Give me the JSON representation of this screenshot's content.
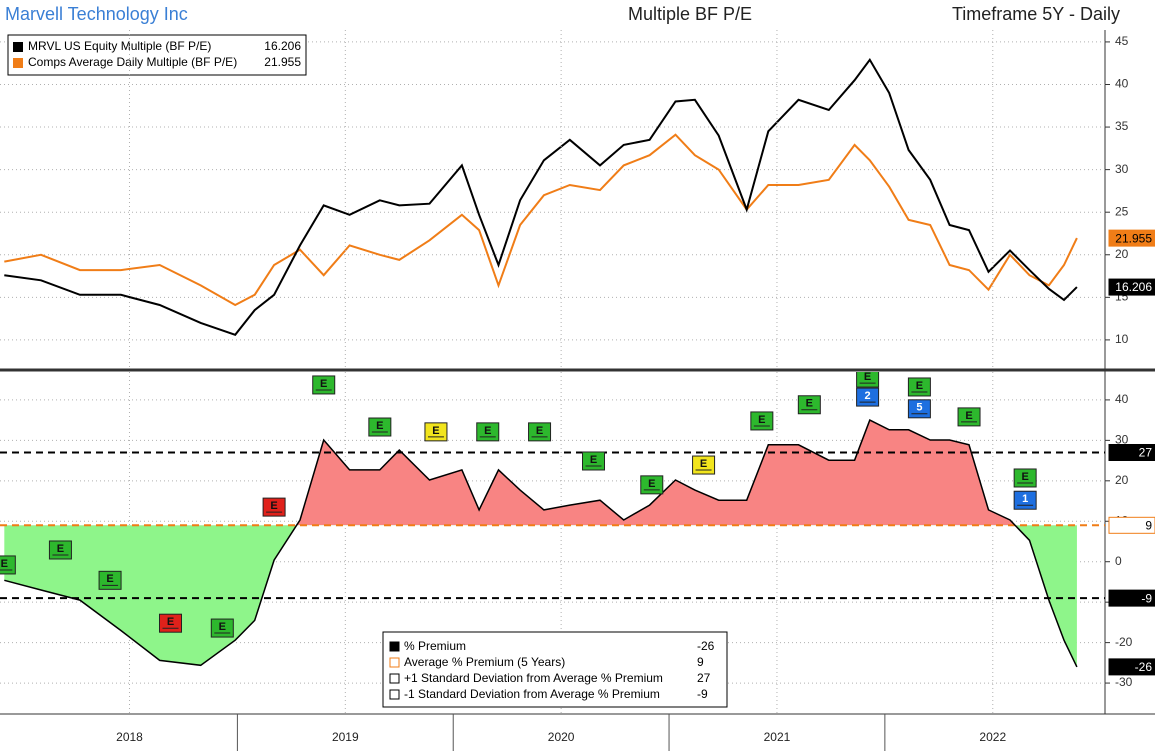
{
  "header": {
    "company": "Marvell Technology Inc",
    "title": "Multiple BF P/E",
    "timeframe": "Timeframe 5Y - Daily"
  },
  "chart_data": [
    {
      "type": "line",
      "x": [
        2017.92,
        2018.09,
        2018.27,
        2018.46,
        2018.64,
        2018.83,
        2018.99,
        2019.08,
        2019.17,
        2019.29,
        2019.4,
        2019.52,
        2019.66,
        2019.75,
        2019.89,
        2020.04,
        2020.12,
        2020.21,
        2020.31,
        2020.42,
        2020.54,
        2020.68,
        2020.79,
        2020.91,
        2021.03,
        2021.12,
        2021.23,
        2021.36,
        2021.46,
        2021.6,
        2021.74,
        2021.86,
        2021.93,
        2022.02,
        2022.11,
        2022.21,
        2022.3,
        2022.39,
        2022.48,
        2022.58,
        2022.67,
        2022.76,
        2022.83,
        2022.89
      ],
      "xlim": [
        2017.9,
        2023.02
      ],
      "ylim": [
        6.7,
        46.4
      ],
      "yticks": [
        10,
        15,
        20,
        25,
        30,
        35,
        40,
        45
      ],
      "grid": true,
      "legend": "upper left",
      "series": [
        {
          "name": "MRVL US Equity Multiple (BF P/E)",
          "color": "#000000",
          "values": [
            17.6,
            17.0,
            15.3,
            15.3,
            14.1,
            12.0,
            10.6,
            13.5,
            15.3,
            21.1,
            25.8,
            24.7,
            26.4,
            25.8,
            26.0,
            30.5,
            24.7,
            18.8,
            26.4,
            31.1,
            33.5,
            30.5,
            32.9,
            33.5,
            38.0,
            38.2,
            34.0,
            25.3,
            34.5,
            38.2,
            37.0,
            40.5,
            42.9,
            39.0,
            32.3,
            28.8,
            23.5,
            22.9,
            18.0,
            20.5,
            18.2,
            16.0,
            14.7,
            16.206
          ]
        },
        {
          "name": "Comps Average Daily Multiple (BF P/E)",
          "color": "#f07d17",
          "values": [
            19.2,
            20.0,
            18.2,
            18.2,
            18.8,
            16.4,
            14.1,
            15.3,
            18.8,
            20.6,
            17.6,
            21.1,
            20.0,
            19.4,
            21.7,
            24.7,
            22.9,
            16.4,
            23.5,
            27.0,
            28.2,
            27.6,
            30.5,
            31.7,
            34.1,
            31.7,
            30.0,
            25.3,
            28.2,
            28.2,
            28.8,
            32.9,
            31.1,
            28.0,
            24.1,
            23.5,
            18.8,
            18.2,
            15.9,
            20.0,
            17.6,
            16.4,
            18.8,
            21.955
          ]
        }
      ]
    },
    {
      "type": "area",
      "x": [
        2017.92,
        2018.09,
        2018.27,
        2018.46,
        2018.64,
        2018.83,
        2018.99,
        2019.08,
        2019.17,
        2019.29,
        2019.4,
        2019.52,
        2019.66,
        2019.75,
        2019.89,
        2020.04,
        2020.12,
        2020.21,
        2020.31,
        2020.42,
        2020.54,
        2020.68,
        2020.79,
        2020.91,
        2021.03,
        2021.12,
        2021.23,
        2021.36,
        2021.46,
        2021.6,
        2021.74,
        2021.86,
        2021.93,
        2022.02,
        2022.11,
        2022.21,
        2022.3,
        2022.39,
        2022.48,
        2022.58,
        2022.67,
        2022.76,
        2022.83,
        2022.89
      ],
      "xlim": [
        2017.9,
        2023.02
      ],
      "ylim": [
        -37.4,
        46.9
      ],
      "yticks": [
        -30,
        -20,
        -10,
        0,
        10,
        20,
        30,
        40
      ],
      "grid": true,
      "legend": "lower center",
      "xticks": [
        {
          "value": 2018.5,
          "label": "2018"
        },
        {
          "value": 2019.5,
          "label": "2019"
        },
        {
          "value": 2020.5,
          "label": "2020"
        },
        {
          "value": 2021.5,
          "label": "2021"
        },
        {
          "value": 2022.5,
          "label": "2022"
        }
      ],
      "series": [
        {
          "name": "% Premium",
          "color": "#000000",
          "above_color": "#f88483",
          "below_color": "#8ef58a",
          "values": [
            -4.6,
            -7,
            -9.5,
            -17,
            -24.4,
            -25.6,
            -19.4,
            -14.5,
            0.4,
            10.3,
            30.1,
            22.7,
            22.7,
            27.6,
            20.2,
            22.7,
            12.8,
            22.7,
            17.7,
            12.8,
            14.0,
            15.2,
            10.3,
            14.0,
            20.2,
            17.7,
            15.2,
            15.2,
            28.9,
            28.9,
            25.1,
            25.1,
            35.0,
            32.6,
            32.6,
            30.1,
            30.1,
            28.9,
            12.8,
            10.3,
            5.3,
            -9.5,
            -19.4,
            -26
          ]
        }
      ],
      "reference_lines": [
        {
          "name": "Average % Premium (5 Years)",
          "value": 9,
          "color": "#f07d17"
        },
        {
          "name": "+1 Standard Deviation from Average % Premium",
          "value": 27,
          "color": "#000000"
        },
        {
          "name": "-1 Standard Deviation from Average % Premium",
          "value": -9,
          "color": "#000000"
        }
      ],
      "events": [
        {
          "x": 2017.92,
          "y": -0.8,
          "label": "E",
          "color": "#2db82d"
        },
        {
          "x": 2018.18,
          "y": 2.9,
          "label": "E",
          "color": "#2db82d"
        },
        {
          "x": 2018.41,
          "y": -4.6,
          "label": "E",
          "color": "#2db82d"
        },
        {
          "x": 2018.69,
          "y": -15.2,
          "label": "E",
          "color": "#e0211b"
        },
        {
          "x": 2018.93,
          "y": -16.4,
          "label": "E",
          "color": "#2db82d"
        },
        {
          "x": 2019.17,
          "y": 13.5,
          "label": "E",
          "color": "#e0211b"
        },
        {
          "x": 2019.4,
          "y": 43.7,
          "label": "E",
          "color": "#2db82d"
        },
        {
          "x": 2019.66,
          "y": 33.3,
          "label": "E",
          "color": "#2db82d"
        },
        {
          "x": 2019.92,
          "y": 32.1,
          "label": "E",
          "color": "#f2e51d"
        },
        {
          "x": 2020.16,
          "y": 32.1,
          "label": "E",
          "color": "#2db82d"
        },
        {
          "x": 2020.4,
          "y": 32.1,
          "label": "E",
          "color": "#2db82d"
        },
        {
          "x": 2020.65,
          "y": 24.9,
          "label": "E",
          "color": "#2db82d"
        },
        {
          "x": 2020.92,
          "y": 19.0,
          "label": "E",
          "color": "#2db82d"
        },
        {
          "x": 2021.16,
          "y": 23.9,
          "label": "E",
          "color": "#f2e51d"
        },
        {
          "x": 2021.43,
          "y": 34.8,
          "label": "E",
          "color": "#2db82d"
        },
        {
          "x": 2021.65,
          "y": 38.8,
          "label": "E",
          "color": "#2db82d"
        },
        {
          "x": 2021.92,
          "y": 45.4,
          "label": "E",
          "color": "#2db82d"
        },
        {
          "x": 2021.92,
          "y": 40.7,
          "label": "2",
          "color": "#1e6fe0"
        },
        {
          "x": 2022.16,
          "y": 43.2,
          "label": "E",
          "color": "#2db82d"
        },
        {
          "x": 2022.16,
          "y": 37.8,
          "label": "5",
          "color": "#1e6fe0"
        },
        {
          "x": 2022.39,
          "y": 35.8,
          "label": "E",
          "color": "#2db82d"
        },
        {
          "x": 2022.65,
          "y": 20.7,
          "label": "E",
          "color": "#2db82d"
        },
        {
          "x": 2022.65,
          "y": 15.2,
          "label": "1",
          "color": "#1e6fe0"
        }
      ]
    }
  ]
}
